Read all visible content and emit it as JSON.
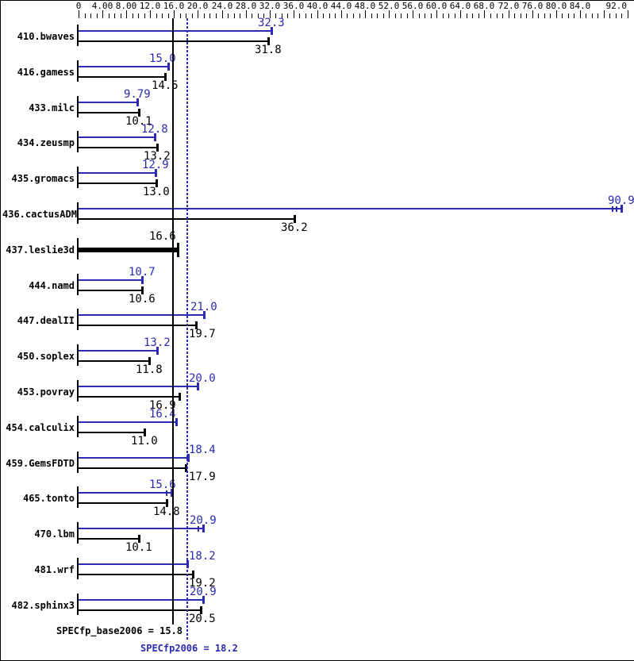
{
  "chart_data": {
    "type": "bar",
    "orientation": "horizontal",
    "grid": false,
    "legend_position": "none",
    "x_axis": {
      "min": 0,
      "max": 92,
      "minor_tick_step": 1,
      "major_tick_step": 4,
      "major_tick_labels": [
        {
          "value": 0,
          "label": "0"
        },
        {
          "value": 4,
          "label": "4.00"
        },
        {
          "value": 8,
          "label": "8.00"
        },
        {
          "value": 12,
          "label": "12.0"
        },
        {
          "value": 16,
          "label": "16.0"
        },
        {
          "value": 20,
          "label": "20.0"
        },
        {
          "value": 24,
          "label": "24.0"
        },
        {
          "value": 28,
          "label": "28.0"
        },
        {
          "value": 32,
          "label": "32.0"
        },
        {
          "value": 36,
          "label": "36.0"
        },
        {
          "value": 40,
          "label": "40.0"
        },
        {
          "value": 44,
          "label": "44.0"
        },
        {
          "value": 48,
          "label": "48.0"
        },
        {
          "value": 52,
          "label": "52.0"
        },
        {
          "value": 56,
          "label": "56.0"
        },
        {
          "value": 60,
          "label": "60.0"
        },
        {
          "value": 64,
          "label": "64.0"
        },
        {
          "value": 68,
          "label": "68.0"
        },
        {
          "value": 72,
          "label": "72.0"
        },
        {
          "value": 76,
          "label": "76.0"
        },
        {
          "value": 80,
          "label": "80.0"
        },
        {
          "value": 84,
          "label": "84.0"
        },
        {
          "value": 92,
          "label": "92.0"
        }
      ]
    },
    "series": [
      {
        "name": "peak (SPECfp2006)",
        "color": "#2a2ab4"
      },
      {
        "name": "base (SPECfp_base2006)",
        "color": "#000000"
      }
    ],
    "benchmarks": [
      {
        "name": "410.bwaves",
        "peak": 32.3,
        "peak_label": "32.3",
        "base": 31.8,
        "base_label": "31.8"
      },
      {
        "name": "416.gamess",
        "peak": 15.0,
        "peak_label": "15.0",
        "base": 14.5,
        "base_label": "14.5"
      },
      {
        "name": "433.milc",
        "peak": 9.79,
        "peak_label": "9.79",
        "base": 10.1,
        "base_label": "10.1"
      },
      {
        "name": "434.zeusmp",
        "peak": 12.8,
        "peak_label": "12.8",
        "base": 13.2,
        "base_label": "13.2"
      },
      {
        "name": "435.gromacs",
        "peak": 12.9,
        "peak_label": "12.9",
        "base": 13.0,
        "base_label": "13.0"
      },
      {
        "name": "436.cactusADM",
        "peak": 90.9,
        "peak_label": "90.9",
        "base": 36.2,
        "base_label": "36.2",
        "peak_extra_end_marks": 2
      },
      {
        "name": "437.leslie3d",
        "single_thick_bar": true,
        "base": 16.6,
        "base_label": "16.6"
      },
      {
        "name": "444.namd",
        "peak": 10.7,
        "peak_label": "10.7",
        "base": 10.6,
        "base_label": "10.6"
      },
      {
        "name": "447.dealII",
        "peak": 21.0,
        "peak_label": "21.0",
        "base": 19.7,
        "base_label": "19.7"
      },
      {
        "name": "450.soplex",
        "peak": 13.2,
        "peak_label": "13.2",
        "base": 11.8,
        "base_label": "11.8"
      },
      {
        "name": "453.povray",
        "peak": 20.0,
        "peak_label": "20.0",
        "base": 16.9,
        "base_label": "16.9"
      },
      {
        "name": "454.calculix",
        "peak": 16.4,
        "peak_label": "16.4",
        "base": 11.0,
        "base_label": "11.0"
      },
      {
        "name": "459.GemsFDTD",
        "peak": 18.4,
        "peak_label": "18.4",
        "base": 17.9,
        "base_label": "17.9"
      },
      {
        "name": "465.tonto",
        "peak": 15.6,
        "peak_label": "15.6",
        "base": 14.8,
        "base_label": "14.8",
        "peak_extra_end_marks": 1
      },
      {
        "name": "470.lbm",
        "peak": 20.9,
        "peak_label": "20.9",
        "base": 10.1,
        "base_label": "10.1",
        "peak_extra_end_marks": 1
      },
      {
        "name": "481.wrf",
        "peak": 18.2,
        "peak_label": "18.2",
        "base": 19.2,
        "base_label": "19.2"
      },
      {
        "name": "482.sphinx3",
        "peak": 20.9,
        "peak_label": "20.9",
        "base": 20.5,
        "base_label": "20.5"
      }
    ],
    "reference_lines": [
      {
        "name": "base-mean",
        "value": 15.8,
        "style": "solid",
        "color": "#000000"
      },
      {
        "name": "peak-mean",
        "value": 18.2,
        "style": "dotted",
        "color": "#2a2ab4"
      }
    ],
    "summary": {
      "base_text": "SPECfp_base2006 = 15.8",
      "peak_text": "SPECfp2006 = 18.2"
    },
    "colors": {
      "peak": "#2a2ab4",
      "base": "#000000",
      "background": "#ffffff",
      "border": "#000000"
    }
  }
}
